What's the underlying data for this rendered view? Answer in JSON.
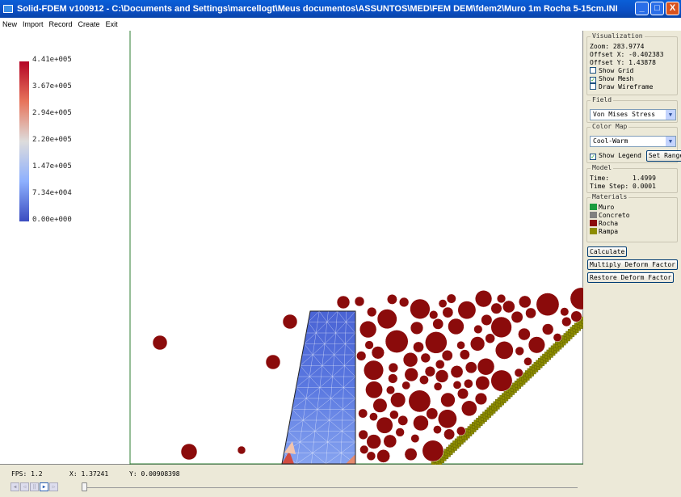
{
  "window": {
    "title": "Solid-FDEM v100912 - C:\\Documents and Settings\\marcellogt\\Meus documentos\\ASSUNTOS\\MED\\FEM DEM\\fdem2\\Muro 1m Rocha 5-15cm.INI",
    "minimize": "_",
    "maximize": "□",
    "close": "X"
  },
  "menu": [
    "New",
    "Import",
    "Record",
    "Create",
    "Exit"
  ],
  "legend": {
    "labels": [
      "4.41e+005",
      "3.67e+005",
      "2.94e+005",
      "2.20e+005",
      "1.47e+005",
      "7.34e+004",
      "0.00e+000"
    ],
    "colors": {
      "high": "#b40426",
      "mid": "#dddcdc",
      "low": "#3b4cc0"
    }
  },
  "panel": {
    "visualization": {
      "title": "Visualization",
      "zoom": "Zoom: 283.9774",
      "offset_x": "Offset X: -0.402383",
      "offset_y": "Offset Y: 1.43878",
      "show_grid": {
        "label": "Show Grid",
        "checked": false
      },
      "show_mesh": {
        "label": "Show Mesh",
        "checked": true
      },
      "draw_wireframe": {
        "label": "Draw Wireframe",
        "checked": false
      }
    },
    "field": {
      "title": "Field",
      "value": "Von Mises Stress"
    },
    "color_map": {
      "title": "Color Map",
      "value": "Cool-Warm",
      "show_legend": {
        "label": "Show Legend",
        "checked": true
      },
      "set_range": "Set Range"
    },
    "model": {
      "title": "Model",
      "time_label": "Time:",
      "time_value": "1.4999",
      "time_step": "Time Step: 0.0001"
    },
    "materials": {
      "title": "Materials",
      "items": [
        {
          "name": "Muro",
          "color": "#1a9c3e"
        },
        {
          "name": "Concreto",
          "color": "#808080"
        },
        {
          "name": "Rocha",
          "color": "#8b0b0b"
        },
        {
          "name": "Rampa",
          "color": "#8c8c00"
        }
      ]
    },
    "buttons": {
      "calculate": "Calculate",
      "multiply": "Multiply Deform Factor",
      "restore": "Restore Deform Factor"
    }
  },
  "status": {
    "fps": "FPS:   1.2",
    "x": "X: 1.37241",
    "y": "Y: 0.00908398"
  },
  "colors": {
    "rock": "#8b0b0b",
    "ramp": "#8c8c00",
    "axis": "#2e7d32"
  }
}
